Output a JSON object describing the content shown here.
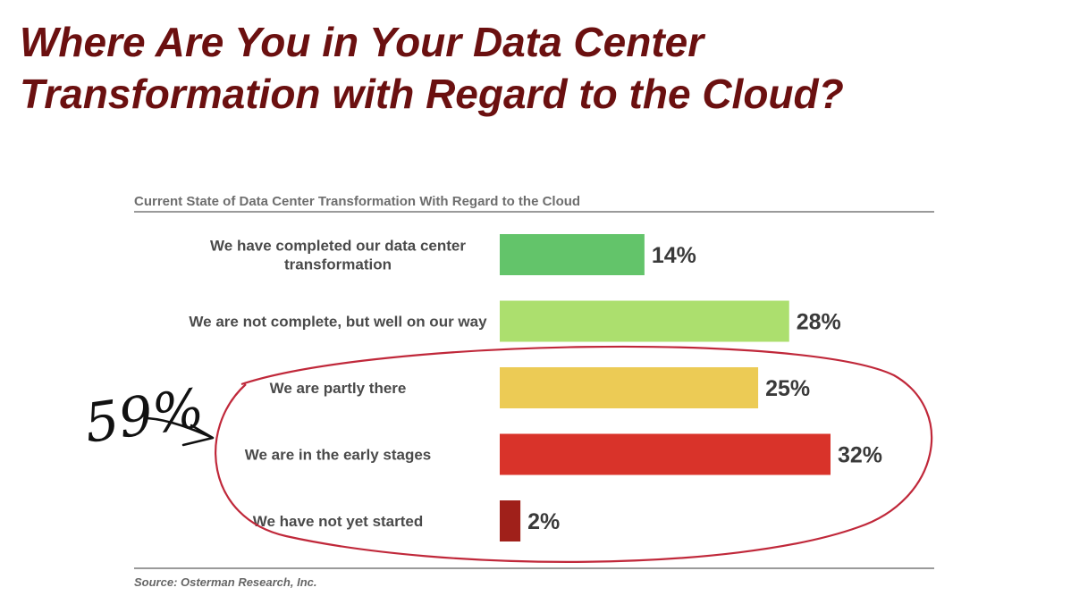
{
  "slide": {
    "title": "Where Are You in Your Data Center\nTransformation with Regard to the Cloud?"
  },
  "chart_data": {
    "type": "bar",
    "orientation": "horizontal",
    "title": "Current State of Data Center Transformation With Regard to the Cloud",
    "categories": [
      [
        "We have completed our data center",
        "transformation"
      ],
      [
        "We are not complete, but well on our way"
      ],
      [
        "We are partly there"
      ],
      [
        "We are in the early stages"
      ],
      [
        "We have not yet started"
      ]
    ],
    "values": [
      14,
      28,
      25,
      32,
      2
    ],
    "value_labels": [
      "14%",
      "28%",
      "25%",
      "32%",
      "2%"
    ],
    "colors": [
      "#63c46a",
      "#acdf6e",
      "#eccb55",
      "#d9332a",
      "#a0201a"
    ],
    "xlim": [
      0,
      32
    ],
    "grid": false,
    "legend": "none",
    "source": "Source: Osterman Research, Inc."
  },
  "annotation": {
    "handwritten_text": "59%",
    "ink_color": "#c0283a"
  }
}
